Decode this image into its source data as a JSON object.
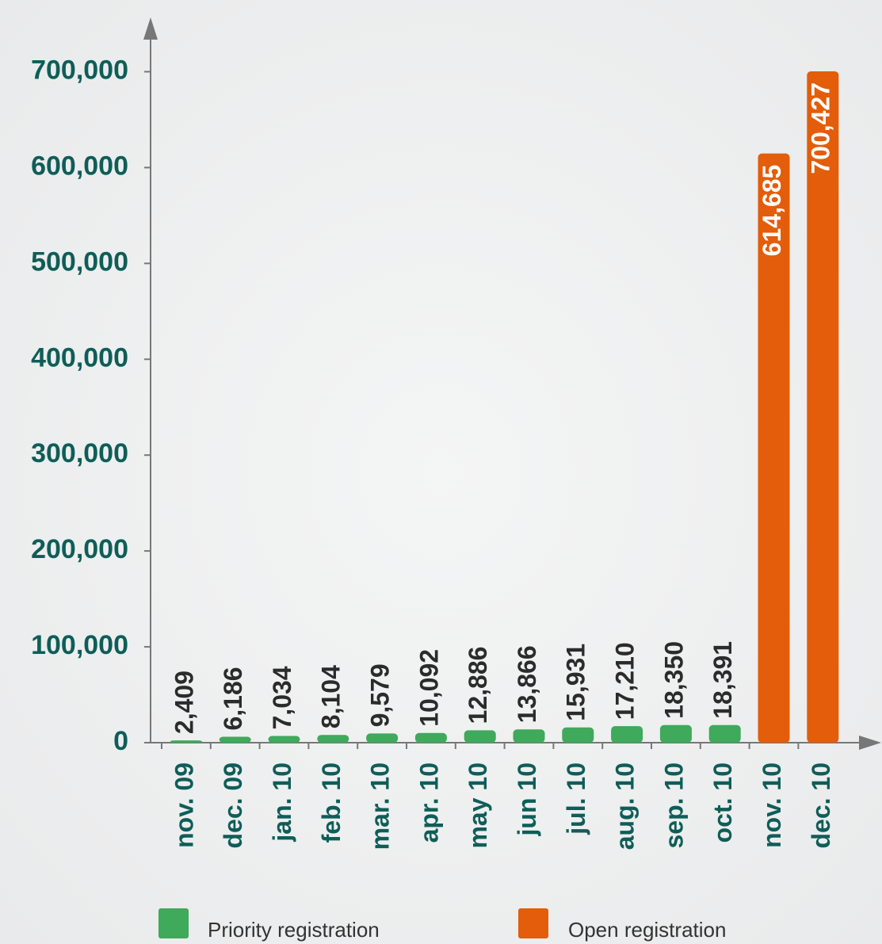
{
  "chart_data": {
    "type": "bar",
    "categories": [
      "nov. 09",
      "dec. 09",
      "jan. 10",
      "feb. 10",
      "mar. 10",
      "apr. 10",
      "may 10",
      "jun 10",
      "jul. 10",
      "aug. 10",
      "sep. 10",
      "oct. 10",
      "nov. 10",
      "dec. 10"
    ],
    "series": [
      {
        "name": "Priority registration",
        "color": "#3fa95c",
        "values": [
          2409,
          6186,
          7034,
          8104,
          9579,
          10092,
          12886,
          13866,
          15931,
          17210,
          18350,
          18391,
          null,
          null
        ],
        "value_labels": [
          "2,409",
          "6,186",
          "7,034",
          "8,104",
          "9,579",
          "10,092",
          "12,886",
          "13,866",
          "15,931",
          "17,210",
          "18,350",
          "18,391",
          null,
          null
        ]
      },
      {
        "name": "Open registration",
        "color": "#e35d0a",
        "values": [
          null,
          null,
          null,
          null,
          null,
          null,
          null,
          null,
          null,
          null,
          null,
          null,
          614685,
          700427
        ],
        "value_labels": [
          null,
          null,
          null,
          null,
          null,
          null,
          null,
          null,
          null,
          null,
          null,
          null,
          "614,685",
          "700,427"
        ]
      }
    ],
    "ylim": [
      0,
      750000
    ],
    "yticks": [
      0,
      {
        "value": 100000,
        "label": "100,000"
      },
      {
        "value": 200000,
        "label": "200,000"
      },
      {
        "value": 300000,
        "label": "300,000"
      },
      {
        "value": 400000,
        "label": "400,000"
      },
      {
        "value": 500000,
        "label": "500,000"
      },
      {
        "value": 600000,
        "label": "600,000"
      },
      {
        "value": 700000,
        "label": "700,000"
      }
    ],
    "grid": false
  }
}
